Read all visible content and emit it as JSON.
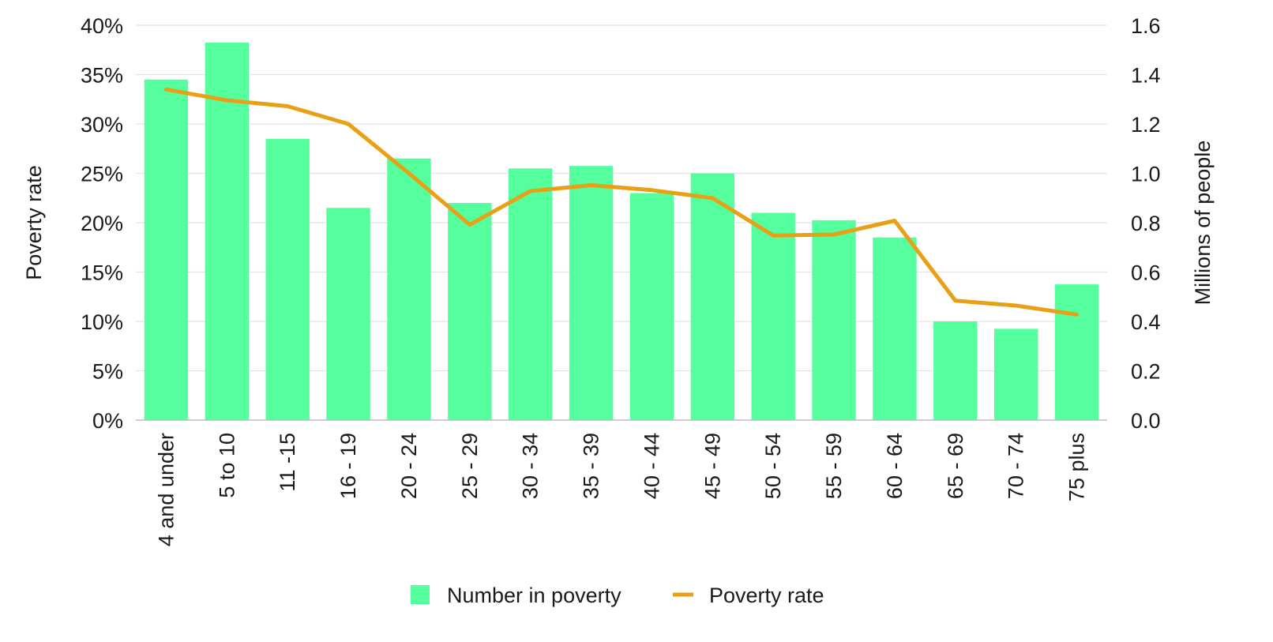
{
  "colors": {
    "bar": "#55ff9e",
    "line": "#e8a016",
    "grid": "#e4e4e4",
    "axis": "#bdbdbd",
    "text": "#1a1a1a"
  },
  "chart_data": {
    "type": "bar",
    "title": "",
    "categories": [
      "4 and under",
      "5 to 10",
      "11 -15",
      "16 - 19",
      "20 - 24",
      "25 - 29",
      "30 - 34",
      "35 - 39",
      "40 - 44",
      "45 - 49",
      "50 - 54",
      "55 - 59",
      "60 - 64",
      "65 - 69",
      "70 - 74",
      "75 plus"
    ],
    "series": [
      {
        "name": "Number in poverty",
        "type": "bar",
        "axis": "right",
        "values": [
          1.38,
          1.53,
          1.14,
          0.86,
          1.06,
          0.88,
          1.02,
          1.03,
          0.92,
          1.0,
          0.84,
          0.81,
          0.74,
          0.4,
          0.37,
          0.55
        ]
      },
      {
        "name": "Poverty rate",
        "type": "line",
        "axis": "left",
        "values": [
          33.5,
          32.4,
          31.8,
          30.0,
          25.0,
          19.8,
          23.2,
          23.8,
          23.3,
          22.5,
          18.7,
          18.8,
          20.2,
          12.1,
          11.6,
          10.7
        ]
      }
    ],
    "left_axis": {
      "label": "Poverty rate",
      "ylim": [
        0,
        40
      ],
      "ticks": [
        "0%",
        "5%",
        "10%",
        "15%",
        "20%",
        "25%",
        "30%",
        "35%",
        "40%"
      ]
    },
    "right_axis": {
      "label": "Millions of people",
      "ylim": [
        0,
        1.6
      ],
      "ticks": [
        "0.0",
        "0.2",
        "0.4",
        "0.6",
        "0.8",
        "1.0",
        "1.2",
        "1.4",
        "1.6"
      ]
    },
    "grid": true,
    "legend_position": "bottom"
  }
}
